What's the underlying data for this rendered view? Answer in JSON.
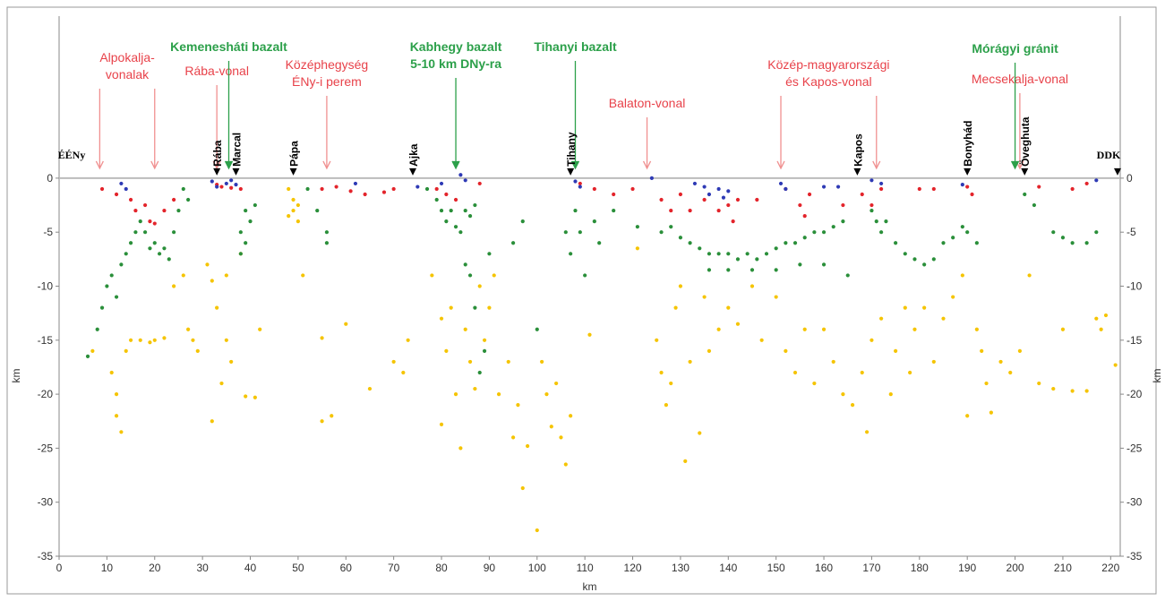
{
  "chart_data": {
    "type": "scatter",
    "xlabel": "km",
    "ylabel": "km",
    "y2label": "km",
    "xlim": [
      0,
      222
    ],
    "ylim": [
      -35,
      15
    ],
    "xticks": [
      0,
      10,
      20,
      30,
      40,
      50,
      60,
      70,
      80,
      90,
      100,
      110,
      120,
      130,
      140,
      150,
      160,
      170,
      180,
      190,
      200,
      210,
      220
    ],
    "yticks": [
      0,
      -5,
      -10,
      -15,
      -20,
      -25,
      -30,
      -35
    ],
    "zero_line": true,
    "ends": [
      "ÉÉNy",
      "DDK"
    ],
    "series": [
      {
        "color": "#f5c400",
        "x": [
          7,
          11,
          12,
          12,
          13,
          14,
          15,
          17,
          19,
          20,
          22,
          24,
          26,
          27,
          28,
          29,
          31,
          32,
          32,
          33,
          34,
          35,
          35,
          36,
          38,
          39,
          41,
          42,
          48,
          49,
          49,
          50,
          50,
          48,
          51,
          55,
          55,
          57,
          60,
          65,
          70,
          72,
          73,
          78,
          80,
          80,
          81,
          82,
          83,
          84,
          85,
          86,
          87,
          88,
          89,
          90,
          91,
          92,
          94,
          95,
          96,
          97,
          98,
          100,
          101,
          102,
          103,
          104,
          105,
          106,
          107,
          111,
          121,
          125,
          126,
          127,
          128,
          129,
          130,
          131,
          132,
          134,
          135,
          136,
          138,
          140,
          142,
          145,
          147,
          150,
          152,
          154,
          156,
          158,
          160,
          162,
          164,
          166,
          168,
          169,
          170,
          172,
          174,
          175,
          177,
          178,
          179,
          181,
          183,
          185,
          187,
          189,
          190,
          192,
          193,
          194,
          195,
          197,
          199,
          201,
          203,
          205,
          208,
          210,
          212,
          215,
          217,
          218,
          219,
          221
        ],
        "values": [
          -16,
          -18,
          -20,
          -22,
          -23.5,
          -16,
          -15,
          -15,
          -15.2,
          -15,
          -14.8,
          -10,
          -9,
          -14,
          -15,
          -16,
          -8,
          -9.5,
          -22.5,
          -12,
          -19,
          -15,
          -9,
          -17,
          -7,
          -20.2,
          -20.3,
          -14,
          -1,
          -2,
          -3,
          -4,
          -2.5,
          -3.5,
          -9,
          -14.8,
          -22.5,
          -22,
          -13.5,
          -19.5,
          -17,
          -18,
          -15,
          -9,
          -13,
          -22.8,
          -16,
          -12,
          -20,
          -25,
          -14,
          -17,
          -19.5,
          -10,
          -15,
          -12,
          -9,
          -20,
          -17,
          -24,
          -21,
          -28.7,
          -24.8,
          -32.6,
          -17,
          -20,
          -23,
          -19,
          -24,
          -26.5,
          -22,
          -14.5,
          -6.5,
          -15,
          -18,
          -21,
          -19,
          -12,
          -10,
          -26.2,
          -17,
          -23.6,
          -11,
          -16,
          -14,
          -12,
          -13.5,
          -10,
          -15,
          -11,
          -16,
          -18,
          -14,
          -19,
          -14,
          -17,
          -20,
          -21,
          -18,
          -23.5,
          -15,
          -13,
          -20,
          -16,
          -12,
          -18,
          -14,
          -12,
          -17,
          -13,
          -11,
          -9,
          -22,
          -14,
          -16,
          -19,
          -21.7,
          -17,
          -18,
          -16,
          -9,
          -19,
          -19.5,
          -14,
          -19.7,
          -19.7,
          -13,
          -14,
          -12.7,
          -17.3
        ]
      },
      {
        "color": "#2a8f3a",
        "x": [
          6,
          8,
          9,
          10,
          11,
          12,
          13,
          14,
          15,
          16,
          17,
          18,
          19,
          20,
          21,
          22,
          23,
          24,
          25,
          26,
          27,
          38,
          38,
          39,
          40,
          41,
          39,
          52,
          54,
          56,
          56,
          77,
          79,
          80,
          81,
          82,
          83,
          84,
          85,
          86,
          87,
          85,
          86,
          87,
          88,
          89,
          90,
          95,
          97,
          100,
          106,
          107,
          108,
          109,
          110,
          112,
          113,
          116,
          121,
          126,
          128,
          130,
          132,
          134,
          136,
          138,
          140,
          142,
          144,
          146,
          148,
          150,
          152,
          154,
          156,
          158,
          160,
          162,
          164,
          136,
          140,
          145,
          150,
          155,
          160,
          165,
          170,
          171,
          172,
          173,
          175,
          177,
          179,
          181,
          183,
          185,
          187,
          189,
          190,
          192,
          202,
          204,
          208,
          210,
          212,
          215,
          217
        ],
        "values": [
          -16.5,
          -14,
          -12,
          -10,
          -9,
          -11,
          -8,
          -7,
          -6,
          -5,
          -4,
          -5,
          -6.5,
          -6,
          -7,
          -6.5,
          -7.5,
          -5,
          -3,
          -1,
          -2,
          -5,
          -7,
          -3,
          -4,
          -2.5,
          -6,
          -1,
          -3,
          -5,
          -6,
          -1,
          -2,
          -3,
          -4,
          -3,
          -4.5,
          -5,
          -3,
          -3.5,
          -2.5,
          -8,
          -9,
          -12,
          -18,
          -16,
          -7,
          -6,
          -4,
          -14,
          -5,
          -7,
          -3,
          -5,
          -9,
          -4,
          -6,
          -3,
          -4.5,
          -5,
          -4.5,
          -5.5,
          -6,
          -6.5,
          -7,
          -7,
          -7,
          -7.5,
          -7,
          -7.5,
          -7,
          -6.5,
          -6,
          -6,
          -5.5,
          -5,
          -5,
          -4.5,
          -4,
          -8.5,
          -8.5,
          -8.5,
          -8.5,
          -8,
          -8,
          -9,
          -3,
          -4,
          -5,
          -4,
          -6,
          -7,
          -7.5,
          -8,
          -7.5,
          -6,
          -5.5,
          -4.5,
          -5,
          -6,
          -1.5,
          -2.5,
          -5,
          -5.5,
          -6,
          -6,
          -5
        ]
      },
      {
        "color": "#e3242b",
        "x": [
          9,
          12,
          15,
          16,
          18,
          19,
          20,
          22,
          24,
          33,
          34,
          36,
          38,
          55,
          58,
          61,
          64,
          68,
          70,
          79,
          81,
          83,
          88,
          109,
          112,
          116,
          120,
          126,
          128,
          130,
          132,
          135,
          138,
          140,
          141,
          142,
          146,
          152,
          155,
          156,
          157,
          164,
          168,
          170,
          172,
          180,
          183,
          190,
          191,
          205,
          212,
          215
        ],
        "values": [
          -1,
          -1.5,
          -2,
          -3,
          -2.5,
          -4,
          -4.2,
          -3,
          -2,
          -0.6,
          -0.8,
          -0.9,
          -1,
          -1,
          -0.8,
          -1.2,
          -1.5,
          -1.3,
          -1,
          -1,
          -1.5,
          -2,
          -0.5,
          -0.5,
          -1,
          -1.5,
          -1,
          -2,
          -3,
          -1.5,
          -3,
          -2,
          -3,
          -2.5,
          -4,
          -2,
          -2,
          -1,
          -2.5,
          -3.5,
          -1.5,
          -2.5,
          -1.5,
          -2.5,
          -1,
          -1,
          -1,
          -0.8,
          -1.5,
          -0.8,
          -1,
          -0.5
        ]
      },
      {
        "color": "#2e3ab5",
        "x": [
          13,
          14,
          32,
          33,
          35,
          36,
          37,
          62,
          75,
          80,
          84,
          85,
          108,
          109,
          124,
          133,
          135,
          136,
          138,
          139,
          140,
          151,
          152,
          160,
          163,
          170,
          172,
          189,
          217
        ],
        "values": [
          -0.5,
          -1,
          -0.3,
          -0.8,
          -0.5,
          -0.2,
          -0.6,
          -0.5,
          -0.8,
          -0.5,
          0.3,
          -0.2,
          -0.3,
          -0.8,
          0,
          -0.5,
          -0.8,
          -1.5,
          -1,
          -1.8,
          -1.2,
          -0.5,
          -1,
          -0.8,
          -0.8,
          -0.2,
          -0.5,
          -0.6,
          -0.2
        ]
      }
    ],
    "annotations": [
      {
        "text": [
          "Alpokalja-",
          "vonalak"
        ],
        "arrows": [
          8.5,
          20
        ],
        "color": "#e8424a"
      },
      {
        "text": [
          "Rába-vonal"
        ],
        "arrows": [
          33
        ],
        "color": "#e8424a"
      },
      {
        "text": [
          "Középhegység",
          "ÉNy-i perem"
        ],
        "arrows": [
          56
        ],
        "color": "#e8424a"
      },
      {
        "text": [
          "Balaton-vonal"
        ],
        "arrows": [
          123
        ],
        "color": "#e8424a"
      },
      {
        "text": [
          "Közép-magyarországi",
          "és Kapos-vonal"
        ],
        "arrows": [
          151,
          171
        ],
        "color": "#e8424a"
      },
      {
        "text": [
          "Mecsekalja-vonal"
        ],
        "arrows": [
          201
        ],
        "color": "#e8424a"
      },
      {
        "text": [
          "Kemenesháti bazalt"
        ],
        "arrows": [
          35.5
        ],
        "color": "#2ca04a"
      },
      {
        "text": [
          "Kabhegy bazalt",
          "5-10 km DNy-ra"
        ],
        "arrows": [
          83
        ],
        "color": "#2ca04a"
      },
      {
        "text": [
          "Tihanyi bazalt"
        ],
        "arrows": [
          108
        ],
        "color": "#2ca04a"
      },
      {
        "text": [
          "Mórágyi gránit"
        ],
        "arrows": [
          200
        ],
        "color": "#2ca04a"
      }
    ],
    "places": [
      {
        "text": "Rába",
        "x": 33
      },
      {
        "text": "Marcal",
        "x": 37
      },
      {
        "text": "Pápa",
        "x": 49
      },
      {
        "text": "Ajka",
        "x": 74
      },
      {
        "text": "Tihany",
        "x": 107
      },
      {
        "text": "Kapos",
        "x": 167
      },
      {
        "text": "Bonyhád",
        "x": 190
      },
      {
        "text": "Öveghuta",
        "x": 202
      }
    ]
  }
}
